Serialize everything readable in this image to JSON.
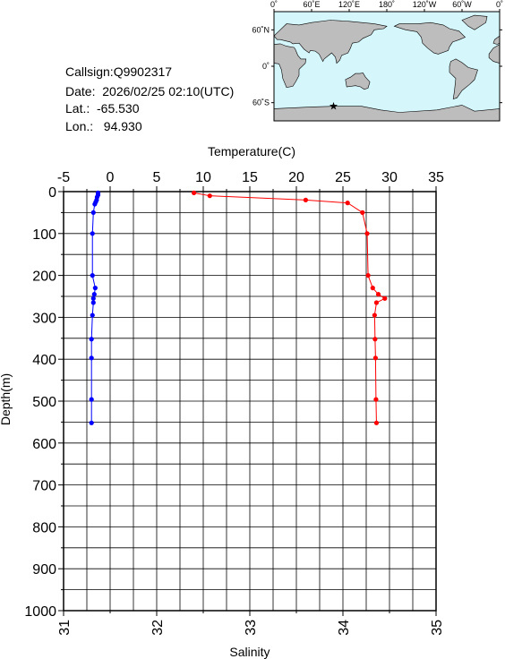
{
  "station": {
    "callsign": "Callsign:Q9902317",
    "date": "Date:  2026/02/25 02:10(UTC)",
    "lat": "Lat.:  -65.530",
    "lon": "Lon.:   94.930"
  },
  "map": {
    "top_ticks": [
      "0˚",
      "60˚E",
      "120˚E",
      "180˚",
      "120˚W",
      "60˚W",
      "0˚"
    ],
    "right_ticks": [
      "60˚N",
      "0˚",
      "60˚S"
    ],
    "colors": {
      "ocean": "#d5f6fb",
      "land": "#bdbdbd",
      "marker": "#ff0000"
    }
  },
  "chart_data": {
    "type": "line",
    "top_axis": {
      "label": "Temperature(C)",
      "range": [
        -5,
        35
      ],
      "ticks": [
        "-5",
        "0",
        "5",
        "10",
        "15",
        "20",
        "25",
        "30",
        "35"
      ]
    },
    "bottom_axis": {
      "label": "Salinity",
      "range": [
        31,
        35
      ],
      "ticks": [
        "31",
        "32",
        "33",
        "34",
        "35"
      ]
    },
    "y_axis": {
      "label": "Depth(m)",
      "range": [
        0,
        1000
      ],
      "inverted": true,
      "ticks": [
        "0",
        "100",
        "200",
        "300",
        "400",
        "500",
        "600",
        "700",
        "800",
        "900",
        "1000"
      ]
    },
    "grid": true,
    "series": [
      {
        "axis": "salinity",
        "color": "#0000ff",
        "points": [
          [
            31.37,
            3
          ],
          [
            31.37,
            8
          ],
          [
            31.36,
            13
          ],
          [
            31.355,
            20
          ],
          [
            31.345,
            25
          ],
          [
            31.335,
            30
          ],
          [
            31.32,
            50
          ],
          [
            31.31,
            100
          ],
          [
            31.31,
            200
          ],
          [
            31.34,
            230
          ],
          [
            31.33,
            245
          ],
          [
            31.32,
            255
          ],
          [
            31.32,
            265
          ],
          [
            31.31,
            295
          ],
          [
            31.3,
            352
          ],
          [
            31.3,
            397
          ],
          [
            31.3,
            496
          ],
          [
            31.3,
            552
          ]
        ]
      },
      {
        "axis": "temperature",
        "color": "#ff0000",
        "points": [
          [
            9.0,
            3
          ],
          [
            10.7,
            10
          ],
          [
            21.0,
            20
          ],
          [
            25.5,
            27
          ],
          [
            27.1,
            50
          ],
          [
            27.6,
            100
          ],
          [
            27.7,
            200
          ],
          [
            28.2,
            230
          ],
          [
            28.8,
            245
          ],
          [
            29.5,
            255
          ],
          [
            28.6,
            265
          ],
          [
            28.4,
            295
          ],
          [
            28.45,
            352
          ],
          [
            28.5,
            397
          ],
          [
            28.55,
            496
          ],
          [
            28.6,
            552
          ]
        ]
      }
    ]
  }
}
